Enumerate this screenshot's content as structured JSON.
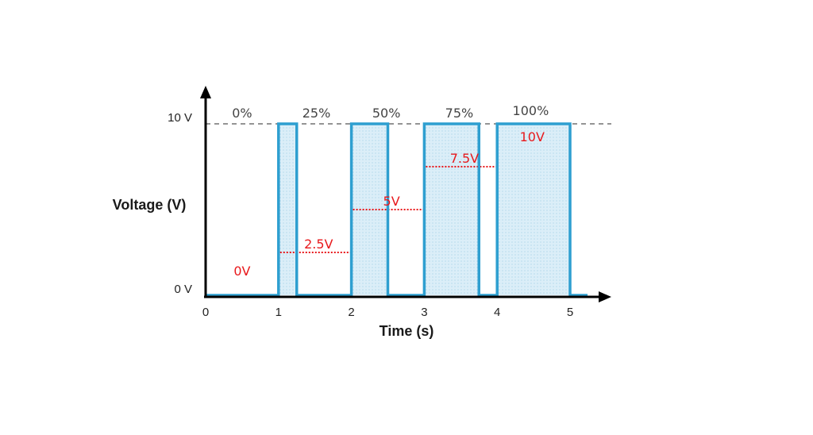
{
  "chart_data": {
    "type": "line",
    "title": "",
    "xlabel": "Time (s)",
    "ylabel": "Voltage (V)",
    "xlim": [
      0,
      5.2
    ],
    "ylim": [
      0,
      10
    ],
    "x_ticks": [
      "0",
      "1",
      "2",
      "3",
      "4",
      "5"
    ],
    "y_ticks": [
      {
        "value": 0,
        "label": "0 V"
      },
      {
        "value": 10,
        "label": "10 V"
      }
    ],
    "reference_line": {
      "value": 10,
      "style": "dashed"
    },
    "periods": [
      {
        "start": 0,
        "duty_label": "0%",
        "duty": 0,
        "average_label": "0V",
        "average": 0
      },
      {
        "start": 1,
        "duty_label": "25%",
        "duty": 0.25,
        "average_label": "2.5V",
        "average": 2.5
      },
      {
        "start": 2,
        "duty_label": "50%",
        "duty": 0.5,
        "average_label": "5V",
        "average": 5
      },
      {
        "start": 3,
        "duty_label": "75%",
        "duty": 0.75,
        "average_label": "7.5V",
        "average": 7.5
      },
      {
        "start": 4,
        "duty_label": "100%",
        "duty": 1.0,
        "average_label": "10V",
        "average": 10
      }
    ],
    "colors": {
      "signal": "#2e9fd0",
      "fill": "#dbeef8",
      "average": "#e8191c",
      "axis": "#000000",
      "reference": "#555555"
    }
  }
}
